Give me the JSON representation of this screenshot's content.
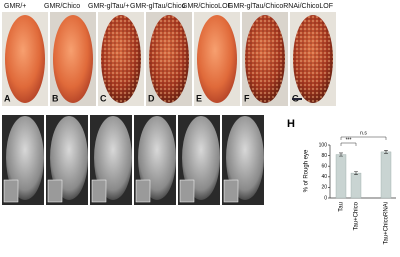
{
  "panels": {
    "genotypes": [
      "GMR/+",
      "GMR/Chico",
      "GMR-glTau/+",
      "GMR-glTau/Chico",
      "GMR/ChicoLOF",
      "GMR-glTau/ChicoRNAi/ChicoLOF"
    ],
    "letters": [
      "A",
      "B",
      "C",
      "D",
      "E",
      "F",
      "G"
    ]
  },
  "chart_data": {
    "type": "bar",
    "panel_letter": "H",
    "y_label": "% of Rough eye",
    "categories": [
      "Tau",
      "Tau+Chico",
      "Tau+ChicoRNAi"
    ],
    "values": [
      82,
      47,
      87
    ],
    "errors": [
      3,
      3,
      3
    ],
    "color": "#c9d4d2",
    "ylim": [
      0,
      100
    ],
    "yticks": [
      0,
      20,
      40,
      60,
      80,
      100
    ],
    "annotations": [
      "***",
      "n.s"
    ]
  }
}
